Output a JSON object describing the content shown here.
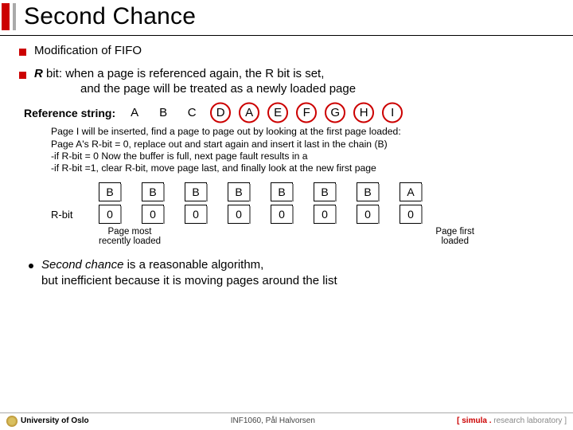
{
  "title": "Second Chance",
  "bullets": {
    "b1": "Modification of FIFO",
    "b2_prefix": "R",
    "b2_rest": " bit: when a page is referenced again, the R bit is set,",
    "b2_line2": "and the page will be treated as a newly loaded page"
  },
  "refstr": {
    "label": "Reference string:",
    "items": [
      "A",
      "B",
      "C",
      "D",
      "A",
      "E",
      "F",
      "G",
      "H",
      "I"
    ],
    "circled": [
      3,
      4,
      5,
      6,
      7,
      8,
      9
    ]
  },
  "blurb": {
    "l1": "Page I will be inserted, find a page to page out by looking at the first page loaded:",
    "l2": "Page A's R-bit = 0, replace out and start again and insert it last in the chain (B)",
    "l3": "-if R-bit = 0 Now the buffer is full, next page fault results in a",
    "l4": "-if R-bit =1, clear R-bit, move page last, and finally look at the new first page"
  },
  "table": {
    "rbit_label": "R-bit",
    "top": [
      "B",
      "B",
      "B",
      "B",
      "B",
      "B",
      "B",
      "A"
    ],
    "bot": [
      "0",
      "0",
      "0",
      "0",
      "0",
      "0",
      "0",
      "0"
    ]
  },
  "legend": {
    "left": "Page most\nrecently loaded",
    "right": "Page first\nloaded"
  },
  "closing": {
    "l1_em": "Second chance",
    "l1_rest": " is a reasonable algorithm,",
    "l2": "but inefficient because it is moving pages around the list"
  },
  "footer": {
    "left": "University of Oslo",
    "mid": "INF1060,   Pål Halvorsen",
    "right_brand": "[ simula .",
    "right_lab": " research laboratory ]"
  },
  "colors": {
    "accent": "#c00"
  }
}
